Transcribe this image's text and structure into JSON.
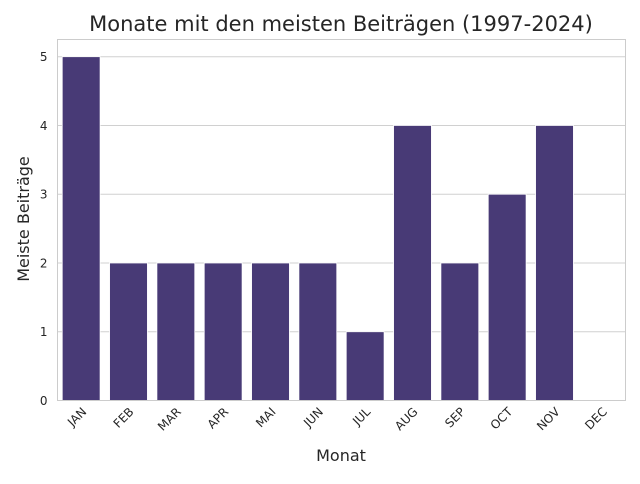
{
  "chart_data": {
    "type": "bar",
    "title": "Monate mit den meisten Beiträgen (1997-2024)",
    "xlabel": "Monat",
    "ylabel": "Meiste Beiträge",
    "categories": [
      "JAN",
      "FEB",
      "MAR",
      "APR",
      "MAI",
      "JUN",
      "JUL",
      "AUG",
      "SEP",
      "OCT",
      "NOV",
      "DEC"
    ],
    "values": [
      5,
      2,
      2,
      2,
      2,
      2,
      1,
      4,
      2,
      3,
      4,
      0
    ],
    "ylim": [
      0,
      5.25
    ],
    "yticks": [
      "0",
      "1",
      "2",
      "3",
      "4",
      "5"
    ],
    "grid": "horizontal",
    "bar_color": "#483a76",
    "grid_color": "#d0d0d0"
  }
}
